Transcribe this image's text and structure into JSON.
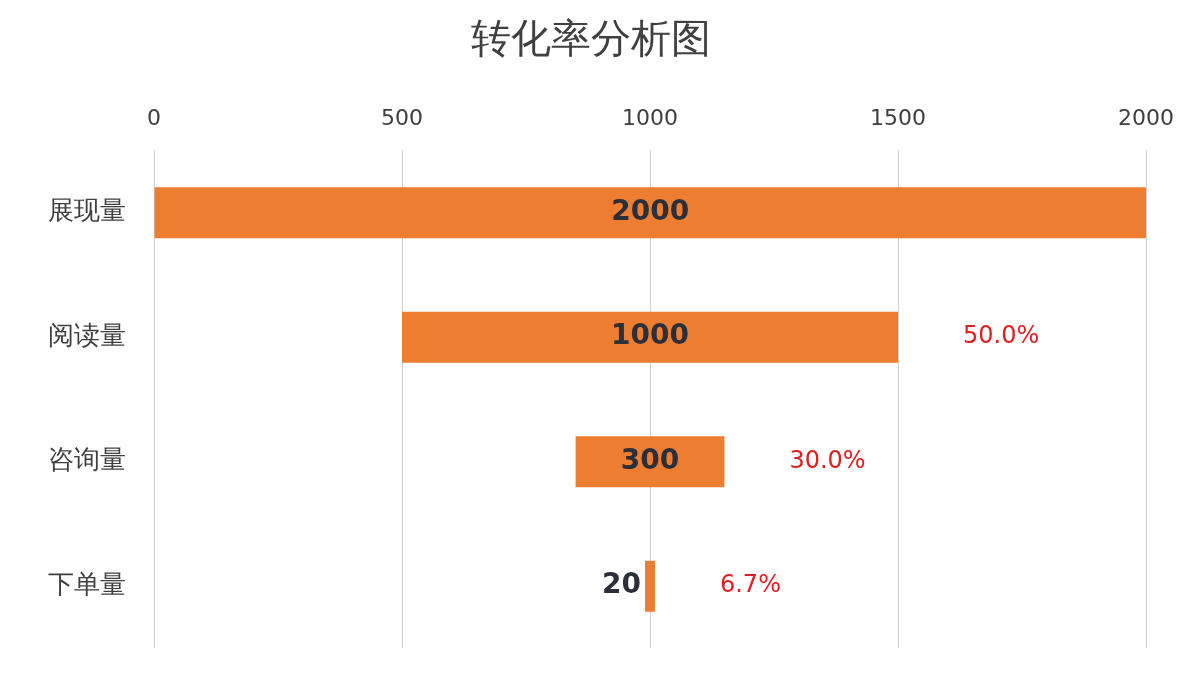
{
  "chart_data": {
    "type": "bar",
    "orientation": "horizontal",
    "title": "转化率分析图",
    "categories": [
      "展现量",
      "阅读量",
      "咨询量",
      "下单量"
    ],
    "values": [
      2000,
      1000,
      300,
      20
    ],
    "base": [
      0,
      500,
      850,
      990
    ],
    "color": "#ed7d31",
    "xlim": [
      0,
      2000
    ],
    "xticks": [
      0,
      500,
      1000,
      1500,
      2000
    ],
    "grid": "x",
    "legend": false,
    "data_labels": true,
    "annotations": [
      "50.0%",
      "30.0%",
      "6.7%"
    ]
  }
}
